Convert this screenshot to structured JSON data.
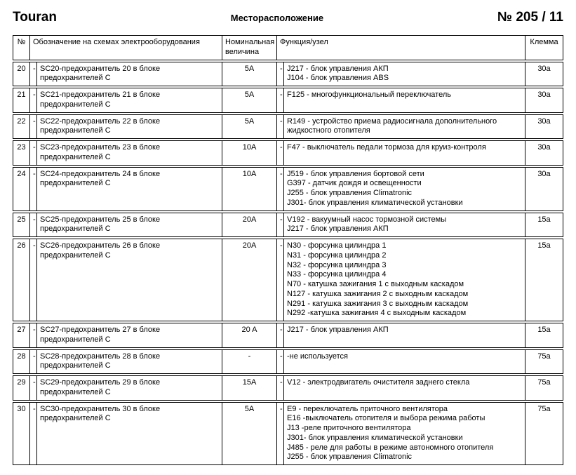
{
  "header": {
    "brand": "Touran",
    "center": "Месторасположение",
    "page": "№  205 / 11"
  },
  "columns": {
    "num": "№",
    "designation": "Обозначение на схемах электрооборудования",
    "nominal_l1": "Номинальная",
    "nominal_l2": "величина",
    "function": "Функция/узел",
    "terminal": "Клемма"
  },
  "rows": [
    {
      "num": "20",
      "d1": "-",
      "desig": "SC20-предохранитель 20 в блоке предохранителей C",
      "nom": "5A",
      "d2": "-",
      "func": [
        "J217 - блок управления АКП",
        "J104 - блок управления ABS"
      ],
      "term": "30a"
    },
    {
      "num": "21",
      "d1": "-",
      "desig": "SC21-предохранитель 21 в блоке предохранителей C",
      "nom": "5A",
      "d2": "-",
      "func": [
        "F125 - многофункциональный переключатель"
      ],
      "term": "30a"
    },
    {
      "num": "22",
      "d1": "-",
      "desig": "SC22-предохранитель 22 в блоке предохранителей C",
      "nom": "5A",
      "d2": "-",
      "func": [
        "R149 - устройство приема радиосигнала дополнительного жидкостного отопителя"
      ],
      "term": "30a"
    },
    {
      "num": "23",
      "d1": "-",
      "desig": "SC23-предохранитель 23 в блоке предохранителей C",
      "nom": "10A",
      "d2": "-",
      "func": [
        "F47 - выключатель педали тормоза для круиз-контроля"
      ],
      "term": "30a"
    },
    {
      "num": "24",
      "d1": "-",
      "desig": "SC24-предохранитель 24 в блоке предохранителей C",
      "nom": "10A",
      "d2": "-",
      "func": [
        "J519 - блок управления бортовой сети",
        "G397 - датчик дождя и освещенности",
        "J255 - блок управления Climatronic",
        "J301- блок управления климатической установки"
      ],
      "term": "30a"
    },
    {
      "num": "25",
      "d1": "-",
      "desig": "SC25-предохранитель 25 в блоке предохранителей C",
      "nom": "20A",
      "d2": "-",
      "func": [
        "V192 - вакуумный насос тормозной системы",
        "J217 - блок управления АКП"
      ],
      "term": "15a"
    },
    {
      "num": "26",
      "d1": "-",
      "desig": "SC26-предохранитель 26 в блоке предохранителей C",
      "nom": "20A",
      "d2": "-",
      "func": [
        "N30 - форсунка цилиндра 1",
        "N31 - форсунка цилиндра 2",
        "N32 - форсунка цилиндра 3",
        "N33 - форсунка цилиндра 4",
        "N70 - катушка зажигания 1 с выходным каскадом",
        "N127 - катушка зажигания 2 с выходным каскадом",
        "N291 - катушка зажигания 3 с выходным каскадом",
        "N292 -катушка зажигания 4 с выходным каскадом"
      ],
      "term": "15a"
    },
    {
      "num": "27",
      "d1": "-",
      "desig": "SC27-предохранитель 27 в блоке предохранителей C",
      "nom": "20 A",
      "d2": "-",
      "func": [
        "J217 - блок управления АКП"
      ],
      "term": "15a"
    },
    {
      "num": "28",
      "d1": "-",
      "desig": "SC28-предохранитель 28 в блоке предохранителей C",
      "nom": "-",
      "d2": "-",
      "func": [
        "-не используется"
      ],
      "term": "75a"
    },
    {
      "num": "29",
      "d1": "-",
      "desig": "SC29-предохранитель 29 в блоке предохранителей C",
      "nom": "15A",
      "d2": "-",
      "func": [
        "V12 - электродвигатель очистителя заднего стекла"
      ],
      "term": "75a"
    },
    {
      "num": "30",
      "d1": "-",
      "desig": "SC30-предохранитель 30 в блоке предохранителей C",
      "nom": "5A",
      "d2": "-",
      "func": [
        "E9 - переключатель приточного вентилятора",
        "E16 -выключатель отопителя и выбора режима работы",
        "J13 -реле приточного вентилятора",
        "J301- блок управления климатической установки",
        "J485 - реле для работы в режиме автономного отопителя",
        "J255 - блок управления Climatronic"
      ],
      "term": "75a"
    }
  ]
}
